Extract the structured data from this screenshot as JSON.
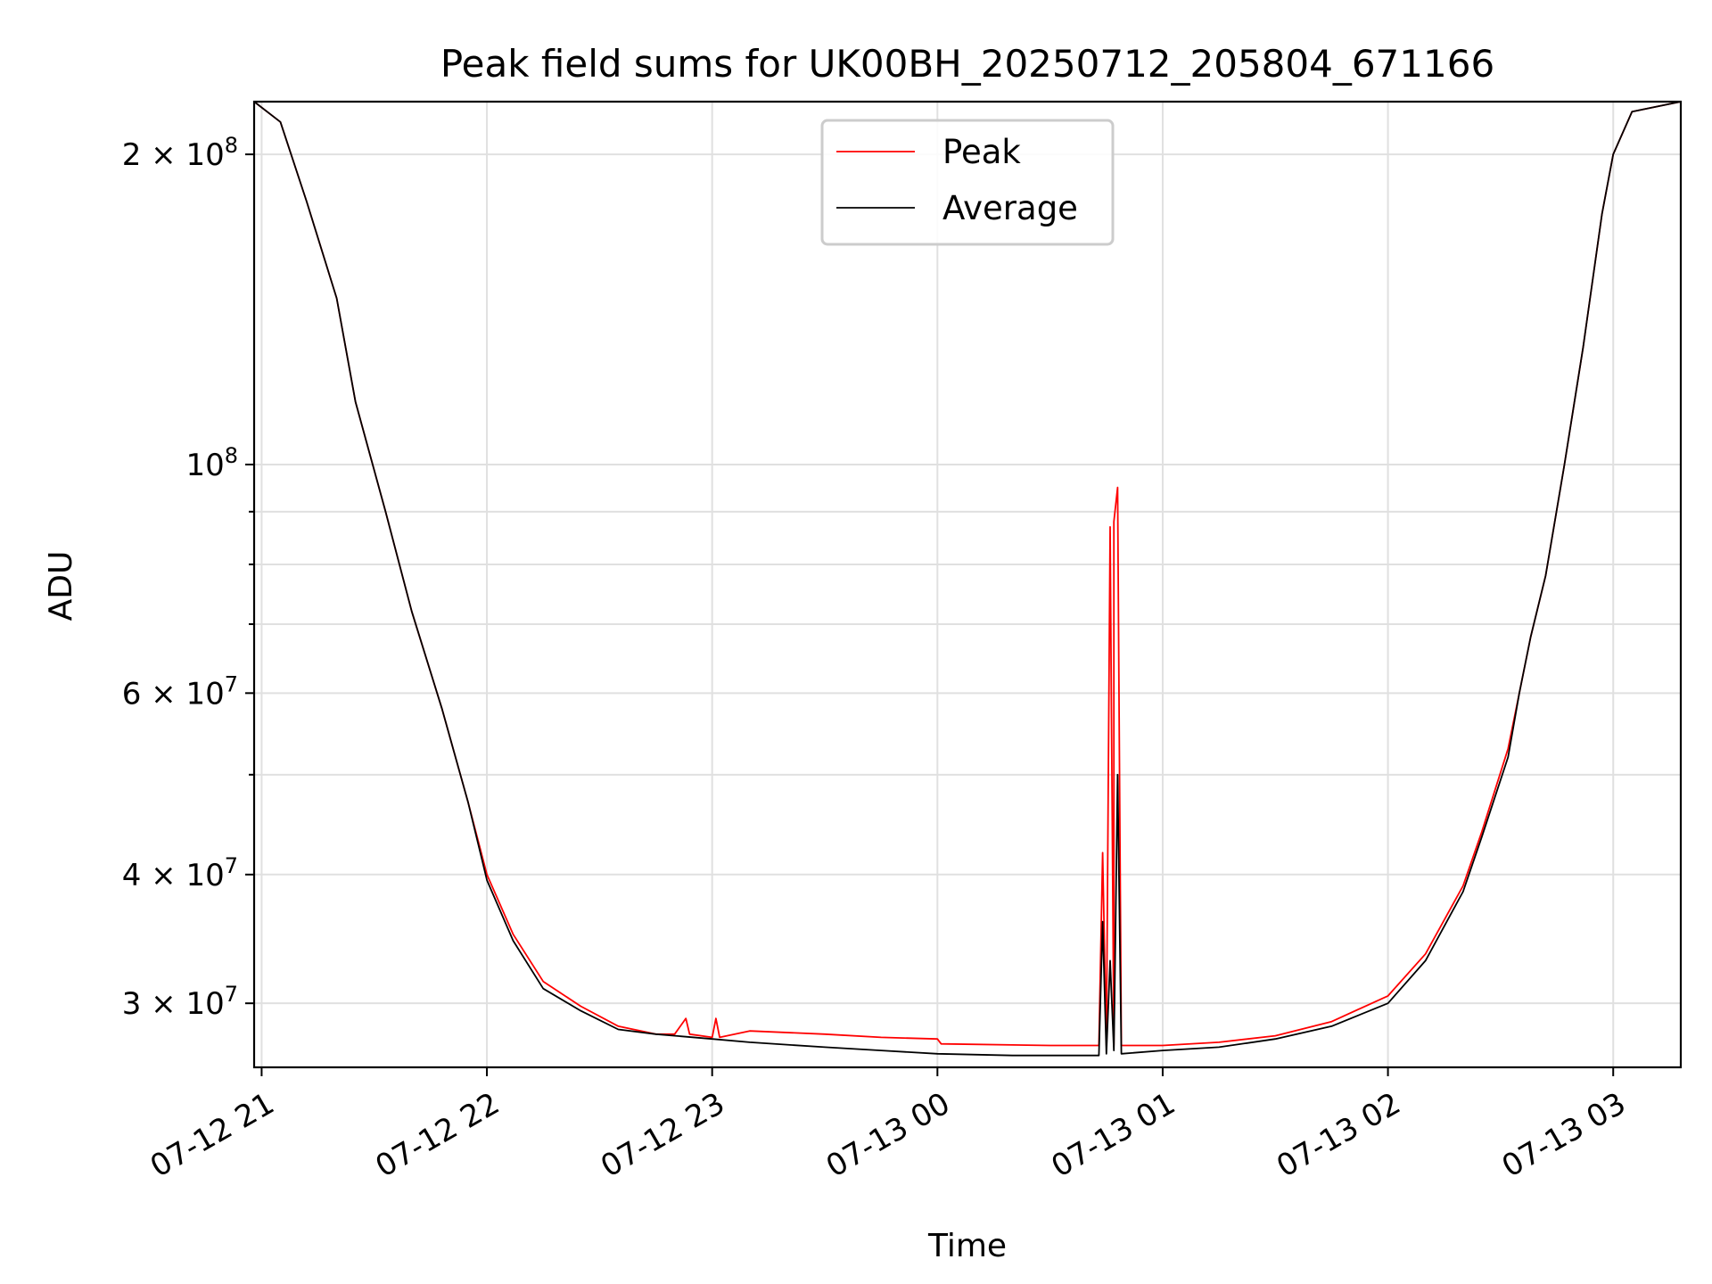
{
  "chart_data": {
    "type": "line",
    "title": "Peak field sums for UK00BH_20250712_205804_671166",
    "xlabel": "Time",
    "ylabel": "ADU",
    "y_scale": "log",
    "ylim": [
      26000000,
      225000000
    ],
    "xlim": [
      "2025-07-12 20:58",
      "2025-07-13 03:18"
    ],
    "grid": true,
    "legend_position": "upper-center",
    "x_ticks": [
      {
        "t": "2025-07-12 21:00",
        "label": "07-12 21"
      },
      {
        "t": "2025-07-12 22:00",
        "label": "07-12 22"
      },
      {
        "t": "2025-07-12 23:00",
        "label": "07-12 23"
      },
      {
        "t": "2025-07-13 00:00",
        "label": "07-13 00"
      },
      {
        "t": "2025-07-13 01:00",
        "label": "07-13 01"
      },
      {
        "t": "2025-07-13 02:00",
        "label": "07-13 02"
      },
      {
        "t": "2025-07-13 03:00",
        "label": "07-13 03"
      }
    ],
    "y_major_ticks": [
      {
        "v": 30000000,
        "base": "3 × 10",
        "exp": "7"
      },
      {
        "v": 40000000,
        "base": "4 × 10",
        "exp": "7"
      },
      {
        "v": 60000000,
        "base": "6 × 10",
        "exp": "7"
      },
      {
        "v": 100000000,
        "base": "10",
        "exp": "8"
      },
      {
        "v": 200000000,
        "base": "2 × 10",
        "exp": "8"
      }
    ],
    "y_minor_ticks": [
      50000000,
      70000000,
      80000000,
      90000000
    ],
    "series": [
      {
        "name": "Peak",
        "color": "#ff0000",
        "points": [
          [
            "2025-07-12 20:58",
            225000000
          ],
          [
            "2025-07-12 21:05",
            215000000
          ],
          [
            "2025-07-12 21:12",
            180000000
          ],
          [
            "2025-07-12 21:20",
            145000000
          ],
          [
            "2025-07-12 21:25",
            115000000
          ],
          [
            "2025-07-12 21:33",
            90000000
          ],
          [
            "2025-07-12 21:40",
            72000000
          ],
          [
            "2025-07-12 21:48",
            58000000
          ],
          [
            "2025-07-12 21:55",
            47000000
          ],
          [
            "2025-07-12 22:00",
            40000000
          ],
          [
            "2025-07-12 22:07",
            35000000
          ],
          [
            "2025-07-12 22:15",
            31500000
          ],
          [
            "2025-07-12 22:25",
            29800000
          ],
          [
            "2025-07-12 22:35",
            28500000
          ],
          [
            "2025-07-12 22:45",
            28000000
          ],
          [
            "2025-07-12 22:50",
            28000000
          ],
          [
            "2025-07-12 22:53",
            29000000
          ],
          [
            "2025-07-12 22:54",
            28000000
          ],
          [
            "2025-07-12 23:00",
            27800000
          ],
          [
            "2025-07-12 23:01",
            29000000
          ],
          [
            "2025-07-12 23:02",
            27800000
          ],
          [
            "2025-07-12 23:10",
            28200000
          ],
          [
            "2025-07-12 23:30",
            28000000
          ],
          [
            "2025-07-12 23:45",
            27800000
          ],
          [
            "2025-07-13 00:00",
            27700000
          ],
          [
            "2025-07-13 00:01",
            27400000
          ],
          [
            "2025-07-13 00:30",
            27300000
          ],
          [
            "2025-07-13 00:43",
            27300000
          ],
          [
            "2025-07-13 00:44",
            42000000
          ],
          [
            "2025-07-13 00:45",
            27300000
          ],
          [
            "2025-07-13 00:46",
            87000000
          ],
          [
            "2025-07-13 00:47",
            27300000
          ],
          [
            "2025-07-13 00:47",
            88000000
          ],
          [
            "2025-07-13 00:48",
            95000000
          ],
          [
            "2025-07-13 00:49",
            27300000
          ],
          [
            "2025-07-13 01:00",
            27300000
          ],
          [
            "2025-07-13 01:15",
            27500000
          ],
          [
            "2025-07-13 01:30",
            27900000
          ],
          [
            "2025-07-13 01:45",
            28800000
          ],
          [
            "2025-07-13 02:00",
            30500000
          ],
          [
            "2025-07-13 02:10",
            33500000
          ],
          [
            "2025-07-13 02:20",
            39000000
          ],
          [
            "2025-07-13 02:25",
            44000000
          ],
          [
            "2025-07-13 02:32",
            53000000
          ],
          [
            "2025-07-13 02:35",
            60000000
          ],
          [
            "2025-07-13 02:38",
            68000000
          ],
          [
            "2025-07-13 02:42",
            78000000
          ],
          [
            "2025-07-13 02:47",
            100000000
          ],
          [
            "2025-07-13 02:52",
            130000000
          ],
          [
            "2025-07-13 02:57",
            175000000
          ],
          [
            "2025-07-13 03:00",
            200000000
          ],
          [
            "2025-07-13 03:05",
            220000000
          ],
          [
            "2025-07-13 03:18",
            225000000
          ]
        ]
      },
      {
        "name": "Average",
        "color": "#000000",
        "points": [
          [
            "2025-07-12 20:58",
            225000000
          ],
          [
            "2025-07-12 21:05",
            215000000
          ],
          [
            "2025-07-12 21:12",
            180000000
          ],
          [
            "2025-07-12 21:20",
            145000000
          ],
          [
            "2025-07-12 21:25",
            115000000
          ],
          [
            "2025-07-12 21:33",
            90000000
          ],
          [
            "2025-07-12 21:40",
            72000000
          ],
          [
            "2025-07-12 21:48",
            58000000
          ],
          [
            "2025-07-12 21:55",
            47000000
          ],
          [
            "2025-07-12 22:00",
            39500000
          ],
          [
            "2025-07-12 22:07",
            34500000
          ],
          [
            "2025-07-12 22:15",
            31000000
          ],
          [
            "2025-07-12 22:25",
            29500000
          ],
          [
            "2025-07-12 22:35",
            28300000
          ],
          [
            "2025-07-12 22:45",
            28000000
          ],
          [
            "2025-07-12 23:00",
            27700000
          ],
          [
            "2025-07-12 23:10",
            27500000
          ],
          [
            "2025-07-12 23:30",
            27200000
          ],
          [
            "2025-07-12 23:45",
            27000000
          ],
          [
            "2025-07-13 00:00",
            26800000
          ],
          [
            "2025-07-13 00:20",
            26700000
          ],
          [
            "2025-07-13 00:43",
            26700000
          ],
          [
            "2025-07-13 00:44",
            36000000
          ],
          [
            "2025-07-13 00:45",
            26800000
          ],
          [
            "2025-07-13 00:46",
            33000000
          ],
          [
            "2025-07-13 00:47",
            27000000
          ],
          [
            "2025-07-13 00:48",
            50000000
          ],
          [
            "2025-07-13 00:49",
            26800000
          ],
          [
            "2025-07-13 01:00",
            27000000
          ],
          [
            "2025-07-13 01:15",
            27200000
          ],
          [
            "2025-07-13 01:30",
            27700000
          ],
          [
            "2025-07-13 01:45",
            28500000
          ],
          [
            "2025-07-13 02:00",
            30000000
          ],
          [
            "2025-07-13 02:10",
            33000000
          ],
          [
            "2025-07-13 02:20",
            38500000
          ],
          [
            "2025-07-13 02:25",
            43500000
          ],
          [
            "2025-07-13 02:32",
            52000000
          ],
          [
            "2025-07-13 02:35",
            60000000
          ],
          [
            "2025-07-13 02:38",
            68000000
          ],
          [
            "2025-07-13 02:42",
            78000000
          ],
          [
            "2025-07-13 02:47",
            100000000
          ],
          [
            "2025-07-13 02:52",
            130000000
          ],
          [
            "2025-07-13 02:57",
            175000000
          ],
          [
            "2025-07-13 03:00",
            200000000
          ],
          [
            "2025-07-13 03:05",
            220000000
          ],
          [
            "2025-07-13 03:18",
            225000000
          ]
        ]
      }
    ]
  }
}
